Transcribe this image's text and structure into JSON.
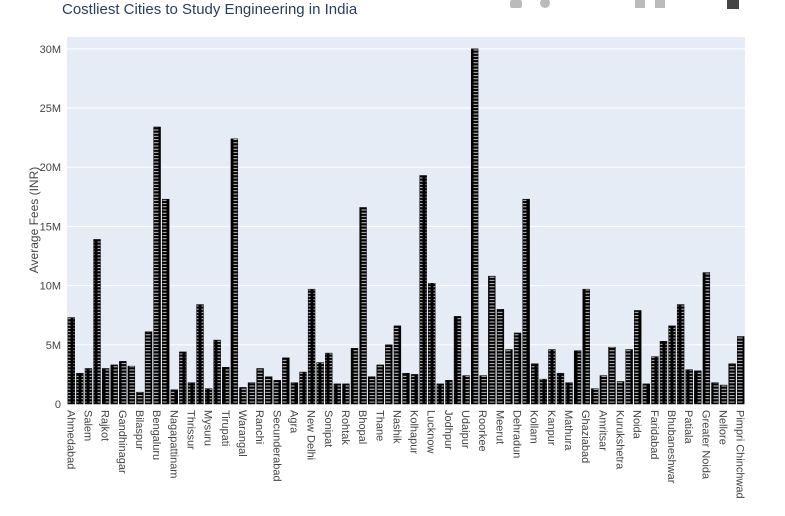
{
  "chart_data": {
    "type": "bar",
    "title": "Costliest Cities to Study Engineering in India",
    "y_label": "Average Fees (INR)",
    "categories": [
      "Ahmedabad",
      null,
      "Salem",
      null,
      "Rajkot",
      null,
      "Gandhinagar",
      null,
      "Bilaspur",
      null,
      "Bengaluru",
      null,
      "Nagapattinam",
      null,
      "Thrissur",
      null,
      "Mysuru",
      null,
      "Tirupati",
      null,
      "Warangal",
      null,
      "Ranchi",
      null,
      "Secunderabad",
      null,
      "Agra",
      null,
      "New Delhi",
      null,
      "Sonipat",
      null,
      "Rohtak",
      null,
      "Bhopal",
      null,
      "Thane",
      null,
      "Nashik",
      null,
      "Kolhapur",
      null,
      "Lucknow",
      null,
      "Jodhpur",
      null,
      "Udaipur",
      null,
      "Roorkee",
      null,
      "Meerut",
      null,
      "Dehradun",
      null,
      "Kollam",
      null,
      "Kanpur",
      null,
      "Mathura",
      null,
      "Ghaziabad",
      null,
      "Amritsar",
      null,
      "Kurukshetra",
      null,
      "Noida",
      null,
      "Faridabad",
      null,
      "Bhubaneshwar",
      null,
      "Patiala",
      null,
      "Greater Noida",
      null,
      "Nellore",
      null,
      "Pimpri Chinchwad"
    ],
    "values": [
      7300000,
      2600000,
      3000000,
      13900000,
      3000000,
      3300000,
      3600000,
      3200000,
      1000000,
      6100000,
      23400000,
      17300000,
      1200000,
      4400000,
      1800000,
      8400000,
      1300000,
      5400000,
      3100000,
      22400000,
      1400000,
      1800000,
      3000000,
      2300000,
      2000000,
      3900000,
      1800000,
      2700000,
      9700000,
      3500000,
      4300000,
      1700000,
      1700000,
      4700000,
      16600000,
      2300000,
      3300000,
      5000000,
      6600000,
      2600000,
      2500000,
      19300000,
      10200000,
      1700000,
      2000000,
      7400000,
      2400000,
      30000000,
      2400000,
      10800000,
      8000000,
      4600000,
      6000000,
      17300000,
      3400000,
      2100000,
      4600000,
      2600000,
      1800000,
      4500000,
      9700000,
      1300000,
      2400000,
      4800000,
      1900000,
      4600000,
      7900000,
      1700000,
      4000000,
      5300000,
      6600000,
      8400000,
      2900000,
      2800000,
      11100000,
      1800000,
      1600000,
      3400000,
      5700000
    ],
    "color": "#000000",
    "ylim": [
      0,
      31000000
    ],
    "yticks": [
      0,
      {
        "value": 5000000,
        "label": "5M"
      },
      {
        "value": 10000000,
        "label": "10M"
      },
      {
        "value": 15000000,
        "label": "15M"
      },
      {
        "value": 20000000,
        "label": "20M"
      },
      {
        "value": 25000000,
        "label": "25M"
      },
      {
        "value": 30000000,
        "label": "30M"
      }
    ],
    "grid": true
  }
}
